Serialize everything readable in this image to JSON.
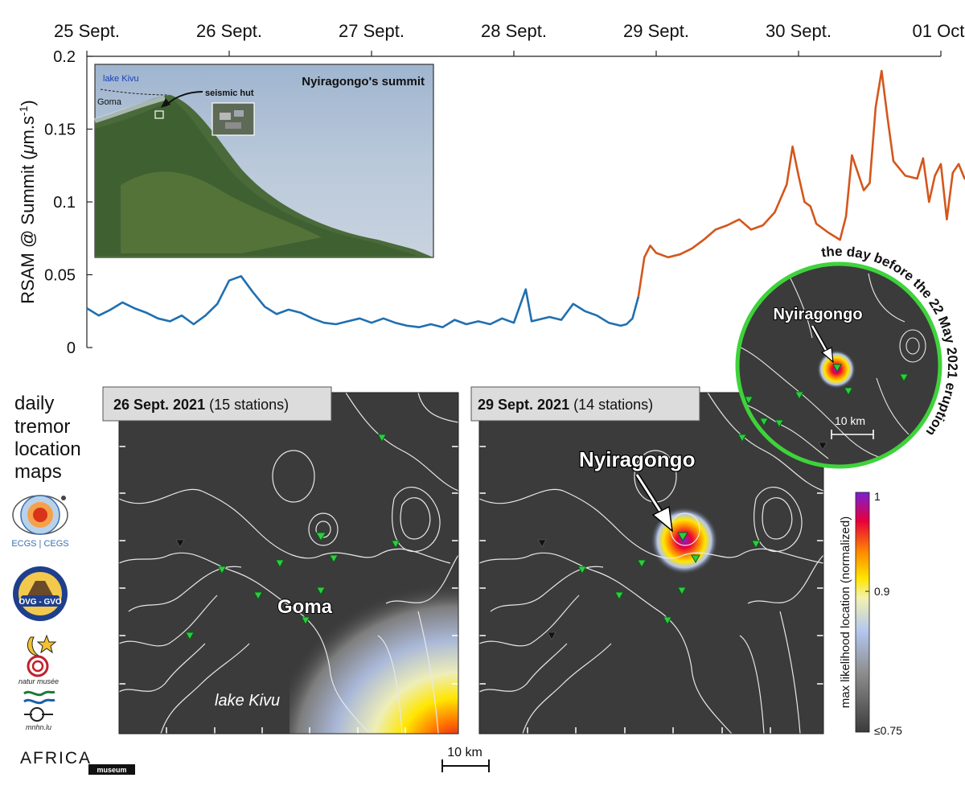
{
  "chart_data": {
    "type": "line",
    "ylabel": "RSAM @ Summit (μm.s⁻¹)",
    "ylabel_parts": {
      "prefix": "RSAM @ Summit (",
      "mu": "μ",
      "unit": "m.s",
      "sup": "-1",
      "suffix": ")"
    },
    "ylim": [
      0,
      0.2
    ],
    "y_ticks": [
      "0",
      "0.05",
      "0.1",
      "0.15",
      "0.2"
    ],
    "y_tick_values": [
      0,
      0.05,
      0.1,
      0.15,
      0.2
    ],
    "x_ticks": [
      "25 Sept.",
      "26 Sept.",
      "27 Sept.",
      "28 Sept.",
      "29 Sept.",
      "30 Sept.",
      "01 Oct."
    ],
    "x_tick_dates": [
      "2021-09-25",
      "2021-09-26",
      "2021-09-27",
      "2021-09-28",
      "2021-09-29",
      "2021-09-30",
      "2021-10-01"
    ],
    "xlim": [
      "2021-09-25T00:00",
      "2021-10-01T00:00"
    ],
    "x_axis_position": "top",
    "grid": false,
    "colors": {
      "before": "#1f6fb0",
      "after": "#d4561c"
    },
    "series": [
      {
        "segment": "before 28 Sept. ~21:00",
        "color": "#1f6fb0",
        "points": [
          [
            "2021-09-25T00:00",
            0.027
          ],
          [
            "2021-09-25T02:00",
            0.022
          ],
          [
            "2021-09-25T04:00",
            0.026
          ],
          [
            "2021-09-25T06:00",
            0.031
          ],
          [
            "2021-09-25T08:00",
            0.027
          ],
          [
            "2021-09-25T10:00",
            0.024
          ],
          [
            "2021-09-25T12:00",
            0.02
          ],
          [
            "2021-09-25T14:00",
            0.018
          ],
          [
            "2021-09-25T16:00",
            0.022
          ],
          [
            "2021-09-25T18:00",
            0.016
          ],
          [
            "2021-09-25T20:00",
            0.022
          ],
          [
            "2021-09-25T22:00",
            0.03
          ],
          [
            "2021-09-26T00:00",
            0.046
          ],
          [
            "2021-09-26T02:00",
            0.049
          ],
          [
            "2021-09-26T04:00",
            0.038
          ],
          [
            "2021-09-26T06:00",
            0.028
          ],
          [
            "2021-09-26T08:00",
            0.023
          ],
          [
            "2021-09-26T10:00",
            0.026
          ],
          [
            "2021-09-26T12:00",
            0.024
          ],
          [
            "2021-09-26T14:00",
            0.02
          ],
          [
            "2021-09-26T16:00",
            0.017
          ],
          [
            "2021-09-26T18:00",
            0.016
          ],
          [
            "2021-09-26T20:00",
            0.018
          ],
          [
            "2021-09-26T22:00",
            0.02
          ],
          [
            "2021-09-27T00:00",
            0.017
          ],
          [
            "2021-09-27T02:00",
            0.02
          ],
          [
            "2021-09-27T04:00",
            0.017
          ],
          [
            "2021-09-27T06:00",
            0.015
          ],
          [
            "2021-09-27T08:00",
            0.014
          ],
          [
            "2021-09-27T10:00",
            0.016
          ],
          [
            "2021-09-27T12:00",
            0.014
          ],
          [
            "2021-09-27T14:00",
            0.019
          ],
          [
            "2021-09-27T16:00",
            0.016
          ],
          [
            "2021-09-27T18:00",
            0.018
          ],
          [
            "2021-09-27T20:00",
            0.016
          ],
          [
            "2021-09-27T22:00",
            0.02
          ],
          [
            "2021-09-28T00:00",
            0.017
          ],
          [
            "2021-09-28T02:00",
            0.04
          ],
          [
            "2021-09-28T03:00",
            0.018
          ],
          [
            "2021-09-28T06:00",
            0.021
          ],
          [
            "2021-09-28T08:00",
            0.019
          ],
          [
            "2021-09-28T10:00",
            0.03
          ],
          [
            "2021-09-28T12:00",
            0.025
          ],
          [
            "2021-09-28T14:00",
            0.022
          ],
          [
            "2021-09-28T16:00",
            0.017
          ],
          [
            "2021-09-28T18:00",
            0.015
          ],
          [
            "2021-09-28T19:00",
            0.016
          ],
          [
            "2021-09-28T20:00",
            0.02
          ],
          [
            "2021-09-28T21:00",
            0.035
          ]
        ]
      },
      {
        "segment": "after 28 Sept. ~21:00",
        "color": "#d4561c",
        "points": [
          [
            "2021-09-28T21:00",
            0.035
          ],
          [
            "2021-09-28T22:00",
            0.062
          ],
          [
            "2021-09-28T23:00",
            0.07
          ],
          [
            "2021-09-29T00:00",
            0.065
          ],
          [
            "2021-09-29T02:00",
            0.062
          ],
          [
            "2021-09-29T04:00",
            0.064
          ],
          [
            "2021-09-29T06:00",
            0.068
          ],
          [
            "2021-09-29T08:00",
            0.074
          ],
          [
            "2021-09-29T10:00",
            0.081
          ],
          [
            "2021-09-29T12:00",
            0.084
          ],
          [
            "2021-09-29T14:00",
            0.088
          ],
          [
            "2021-09-29T16:00",
            0.081
          ],
          [
            "2021-09-29T18:00",
            0.084
          ],
          [
            "2021-09-29T20:00",
            0.093
          ],
          [
            "2021-09-29T22:00",
            0.112
          ],
          [
            "2021-09-29T23:00",
            0.138
          ],
          [
            "2021-09-30T00:00",
            0.118
          ],
          [
            "2021-09-30T01:00",
            0.1
          ],
          [
            "2021-09-30T02:00",
            0.097
          ],
          [
            "2021-09-30T03:00",
            0.085
          ],
          [
            "2021-09-30T05:00",
            0.079
          ],
          [
            "2021-09-30T07:00",
            0.074
          ],
          [
            "2021-09-30T08:00",
            0.09
          ],
          [
            "2021-09-30T09:00",
            0.132
          ],
          [
            "2021-09-30T10:00",
            0.12
          ],
          [
            "2021-09-30T11:00",
            0.108
          ],
          [
            "2021-09-30T12:00",
            0.113
          ],
          [
            "2021-09-30T13:00",
            0.165
          ],
          [
            "2021-09-30T14:00",
            0.19
          ],
          [
            "2021-09-30T15:00",
            0.158
          ],
          [
            "2021-09-30T16:00",
            0.128
          ],
          [
            "2021-09-30T18:00",
            0.118
          ],
          [
            "2021-09-30T20:00",
            0.116
          ],
          [
            "2021-09-30T21:00",
            0.13
          ],
          [
            "2021-09-30T22:00",
            0.1
          ],
          [
            "2021-09-30T23:00",
            0.118
          ],
          [
            "2021-10-01T00:00",
            0.126
          ],
          [
            "2021-10-01T01:00",
            0.088
          ],
          [
            "2021-10-01T02:00",
            0.12
          ],
          [
            "2021-10-01T03:00",
            0.126
          ],
          [
            "2021-10-01T04:00",
            0.116
          ],
          [
            "2021-10-01T05:00",
            0.118
          ],
          [
            "2021-10-01T06:00",
            0.112
          ]
        ]
      }
    ]
  },
  "inset_photo": {
    "title": "Nyiragongo's summit",
    "lake_label": "lake Kivu",
    "city_label": "Goma",
    "hut_label": "seismic hut"
  },
  "side_labels": {
    "maps_title_lines": [
      "daily",
      "tremor",
      "location",
      "maps"
    ],
    "logo1_text": "ECGS | CEGS",
    "logo2_text": "OVG - GVO",
    "logo3_text": "natur musée",
    "logo4_text": "mnhn.lu",
    "logo5_text": "AFRICA",
    "logo5_sub": "museum"
  },
  "map_left": {
    "date": "26 Sept. 2021",
    "stations": "(15 stations)",
    "city_label": "Goma",
    "lake_label": "lake Kivu"
  },
  "map_right": {
    "date": "29 Sept. 2021",
    "stations": "(14 stations)",
    "volcano_label": "Nyiragongo"
  },
  "scalebar_label": "10 km",
  "colorbar": {
    "label": "max likelihood location (normalized)",
    "tick_top": "1",
    "tick_mid": "0.9",
    "tick_bottom": "≤0.75",
    "tick_values": [
      1,
      0.9,
      0.75
    ],
    "stops": [
      "#7a1fd6",
      "#e8003a",
      "#ff8a00",
      "#ffe600",
      "#f2f2b0",
      "#b4c6ef",
      "#8e8e8e",
      "#3b3b3b"
    ]
  },
  "circle_inset": {
    "arc_text": "the day before the 22 May 2021 eruption",
    "volcano_label": "Nyiragongo",
    "scale_label": "10 km"
  }
}
